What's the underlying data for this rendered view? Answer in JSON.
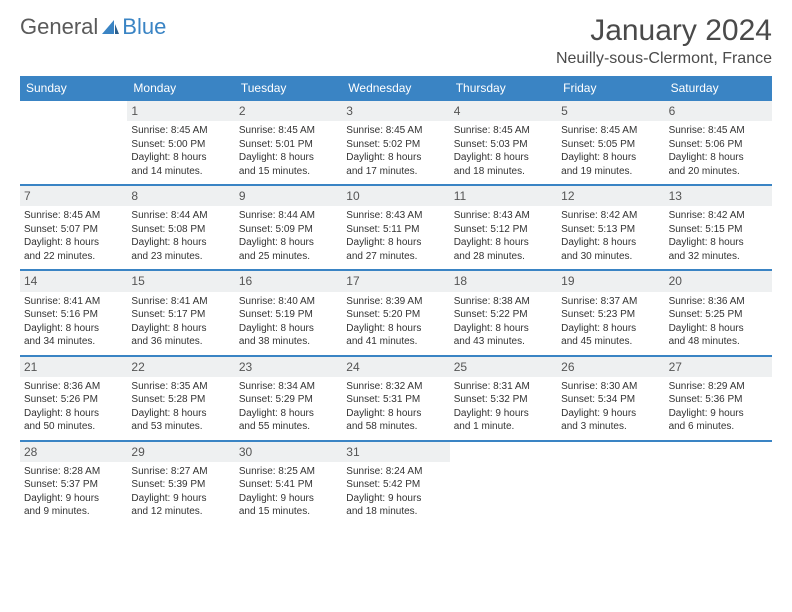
{
  "brand": {
    "part1": "General",
    "part2": "Blue"
  },
  "title": "January 2024",
  "location": "Neuilly-sous-Clermont, France",
  "colors": {
    "accent": "#3a84c4",
    "dayhead_bg": "#3a84c4",
    "dayhead_text": "#ffffff",
    "daynum_bg": "#eef0f1",
    "text": "#333333",
    "title_text": "#4a4a4a"
  },
  "weekdays": [
    "Sunday",
    "Monday",
    "Tuesday",
    "Wednesday",
    "Thursday",
    "Friday",
    "Saturday"
  ],
  "start_offset": 1,
  "days": [
    {
      "n": "1",
      "sunrise": "Sunrise: 8:45 AM",
      "sunset": "Sunset: 5:00 PM",
      "day1": "Daylight: 8 hours",
      "day2": "and 14 minutes."
    },
    {
      "n": "2",
      "sunrise": "Sunrise: 8:45 AM",
      "sunset": "Sunset: 5:01 PM",
      "day1": "Daylight: 8 hours",
      "day2": "and 15 minutes."
    },
    {
      "n": "3",
      "sunrise": "Sunrise: 8:45 AM",
      "sunset": "Sunset: 5:02 PM",
      "day1": "Daylight: 8 hours",
      "day2": "and 17 minutes."
    },
    {
      "n": "4",
      "sunrise": "Sunrise: 8:45 AM",
      "sunset": "Sunset: 5:03 PM",
      "day1": "Daylight: 8 hours",
      "day2": "and 18 minutes."
    },
    {
      "n": "5",
      "sunrise": "Sunrise: 8:45 AM",
      "sunset": "Sunset: 5:05 PM",
      "day1": "Daylight: 8 hours",
      "day2": "and 19 minutes."
    },
    {
      "n": "6",
      "sunrise": "Sunrise: 8:45 AM",
      "sunset": "Sunset: 5:06 PM",
      "day1": "Daylight: 8 hours",
      "day2": "and 20 minutes."
    },
    {
      "n": "7",
      "sunrise": "Sunrise: 8:45 AM",
      "sunset": "Sunset: 5:07 PM",
      "day1": "Daylight: 8 hours",
      "day2": "and 22 minutes."
    },
    {
      "n": "8",
      "sunrise": "Sunrise: 8:44 AM",
      "sunset": "Sunset: 5:08 PM",
      "day1": "Daylight: 8 hours",
      "day2": "and 23 minutes."
    },
    {
      "n": "9",
      "sunrise": "Sunrise: 8:44 AM",
      "sunset": "Sunset: 5:09 PM",
      "day1": "Daylight: 8 hours",
      "day2": "and 25 minutes."
    },
    {
      "n": "10",
      "sunrise": "Sunrise: 8:43 AM",
      "sunset": "Sunset: 5:11 PM",
      "day1": "Daylight: 8 hours",
      "day2": "and 27 minutes."
    },
    {
      "n": "11",
      "sunrise": "Sunrise: 8:43 AM",
      "sunset": "Sunset: 5:12 PM",
      "day1": "Daylight: 8 hours",
      "day2": "and 28 minutes."
    },
    {
      "n": "12",
      "sunrise": "Sunrise: 8:42 AM",
      "sunset": "Sunset: 5:13 PM",
      "day1": "Daylight: 8 hours",
      "day2": "and 30 minutes."
    },
    {
      "n": "13",
      "sunrise": "Sunrise: 8:42 AM",
      "sunset": "Sunset: 5:15 PM",
      "day1": "Daylight: 8 hours",
      "day2": "and 32 minutes."
    },
    {
      "n": "14",
      "sunrise": "Sunrise: 8:41 AM",
      "sunset": "Sunset: 5:16 PM",
      "day1": "Daylight: 8 hours",
      "day2": "and 34 minutes."
    },
    {
      "n": "15",
      "sunrise": "Sunrise: 8:41 AM",
      "sunset": "Sunset: 5:17 PM",
      "day1": "Daylight: 8 hours",
      "day2": "and 36 minutes."
    },
    {
      "n": "16",
      "sunrise": "Sunrise: 8:40 AM",
      "sunset": "Sunset: 5:19 PM",
      "day1": "Daylight: 8 hours",
      "day2": "and 38 minutes."
    },
    {
      "n": "17",
      "sunrise": "Sunrise: 8:39 AM",
      "sunset": "Sunset: 5:20 PM",
      "day1": "Daylight: 8 hours",
      "day2": "and 41 minutes."
    },
    {
      "n": "18",
      "sunrise": "Sunrise: 8:38 AM",
      "sunset": "Sunset: 5:22 PM",
      "day1": "Daylight: 8 hours",
      "day2": "and 43 minutes."
    },
    {
      "n": "19",
      "sunrise": "Sunrise: 8:37 AM",
      "sunset": "Sunset: 5:23 PM",
      "day1": "Daylight: 8 hours",
      "day2": "and 45 minutes."
    },
    {
      "n": "20",
      "sunrise": "Sunrise: 8:36 AM",
      "sunset": "Sunset: 5:25 PM",
      "day1": "Daylight: 8 hours",
      "day2": "and 48 minutes."
    },
    {
      "n": "21",
      "sunrise": "Sunrise: 8:36 AM",
      "sunset": "Sunset: 5:26 PM",
      "day1": "Daylight: 8 hours",
      "day2": "and 50 minutes."
    },
    {
      "n": "22",
      "sunrise": "Sunrise: 8:35 AM",
      "sunset": "Sunset: 5:28 PM",
      "day1": "Daylight: 8 hours",
      "day2": "and 53 minutes."
    },
    {
      "n": "23",
      "sunrise": "Sunrise: 8:34 AM",
      "sunset": "Sunset: 5:29 PM",
      "day1": "Daylight: 8 hours",
      "day2": "and 55 minutes."
    },
    {
      "n": "24",
      "sunrise": "Sunrise: 8:32 AM",
      "sunset": "Sunset: 5:31 PM",
      "day1": "Daylight: 8 hours",
      "day2": "and 58 minutes."
    },
    {
      "n": "25",
      "sunrise": "Sunrise: 8:31 AM",
      "sunset": "Sunset: 5:32 PM",
      "day1": "Daylight: 9 hours",
      "day2": "and 1 minute."
    },
    {
      "n": "26",
      "sunrise": "Sunrise: 8:30 AM",
      "sunset": "Sunset: 5:34 PM",
      "day1": "Daylight: 9 hours",
      "day2": "and 3 minutes."
    },
    {
      "n": "27",
      "sunrise": "Sunrise: 8:29 AM",
      "sunset": "Sunset: 5:36 PM",
      "day1": "Daylight: 9 hours",
      "day2": "and 6 minutes."
    },
    {
      "n": "28",
      "sunrise": "Sunrise: 8:28 AM",
      "sunset": "Sunset: 5:37 PM",
      "day1": "Daylight: 9 hours",
      "day2": "and 9 minutes."
    },
    {
      "n": "29",
      "sunrise": "Sunrise: 8:27 AM",
      "sunset": "Sunset: 5:39 PM",
      "day1": "Daylight: 9 hours",
      "day2": "and 12 minutes."
    },
    {
      "n": "30",
      "sunrise": "Sunrise: 8:25 AM",
      "sunset": "Sunset: 5:41 PM",
      "day1": "Daylight: 9 hours",
      "day2": "and 15 minutes."
    },
    {
      "n": "31",
      "sunrise": "Sunrise: 8:24 AM",
      "sunset": "Sunset: 5:42 PM",
      "day1": "Daylight: 9 hours",
      "day2": "and 18 minutes."
    }
  ]
}
